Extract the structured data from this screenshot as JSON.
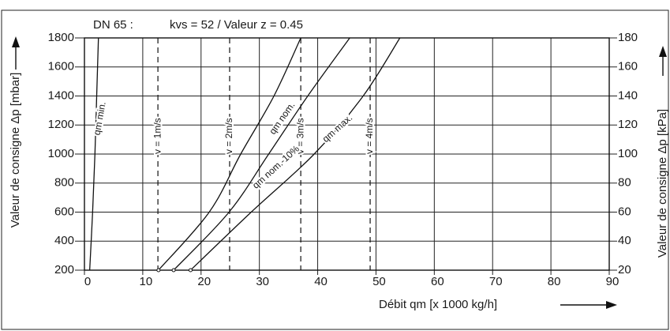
{
  "chart_data": {
    "type": "line",
    "title": "DN 65 :",
    "subtitle": "kvs = 52 / Valeur z = 0.45",
    "x_label": "Débit qm [x 1000 kg/h]",
    "y_label": "Valeur de consigne Δp [mbar]",
    "y2_label": "Valeur de consigne Δp [kPa]",
    "xlim": [
      0,
      90
    ],
    "xticks": [
      0,
      10,
      20,
      30,
      40,
      50,
      60,
      70,
      80,
      90
    ],
    "ylim": [
      200,
      1800
    ],
    "yticks": [
      200,
      400,
      600,
      800,
      1000,
      1200,
      1400,
      1600,
      1800
    ],
    "y2lim": [
      20,
      180
    ],
    "y2ticks": [
      20,
      40,
      60,
      80,
      100,
      120,
      140,
      160,
      180
    ],
    "grid": true,
    "series": [
      {
        "name": "qm min.",
        "color": "#111111",
        "x": [
          0.9,
          1.4,
          1.8,
          2.1,
          2.4
        ],
        "values": [
          200,
          600,
          1000,
          1400,
          1800
        ]
      },
      {
        "name": "qm nom.",
        "color": "#111111",
        "x": [
          12.7,
          21.4,
          26.8,
          32.5,
          37.1
        ],
        "values": [
          200,
          600,
          1000,
          1400,
          1800
        ]
      },
      {
        "name": "qm nom.-10%",
        "color": "#111111",
        "x": [
          15.3,
          24.8,
          31.6,
          38.3,
          45.5
        ],
        "values": [
          200,
          600,
          1000,
          1400,
          1800
        ]
      },
      {
        "name": "qm max.",
        "color": "#111111",
        "x": [
          18.2,
          28.6,
          39.4,
          47.8,
          54.1
        ],
        "values": [
          200,
          600,
          1000,
          1400,
          1800
        ]
      }
    ],
    "velocity_lines": [
      {
        "x": 12.6,
        "label": "v = 1m/s"
      },
      {
        "x": 24.9,
        "label": "v = 2m/s"
      },
      {
        "x": 37.1,
        "label": "v = 3m/s"
      },
      {
        "x": 49.0,
        "label": "v = 4m/s"
      }
    ]
  }
}
